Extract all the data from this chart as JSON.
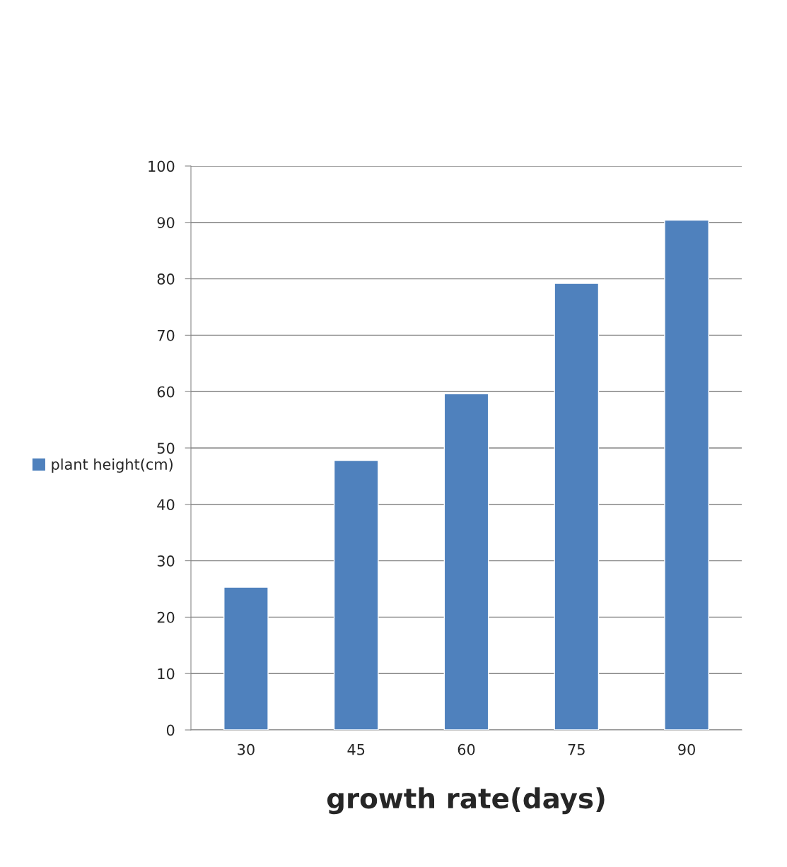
{
  "chart_data": {
    "type": "bar",
    "xlabel": "growth rate(days)",
    "categories": [
      "30",
      "45",
      "60",
      "75",
      "90"
    ],
    "series": [
      {
        "name": "plant height(cm)",
        "color": "#4f81bd",
        "values": [
          25.3,
          47.8,
          59.6,
          79.2,
          90.4
        ]
      }
    ],
    "ylim": [
      0,
      100
    ],
    "yticks": [
      0,
      10,
      20,
      30,
      40,
      50,
      60,
      70,
      80,
      90,
      100
    ],
    "grid": "y",
    "legend": "left"
  }
}
